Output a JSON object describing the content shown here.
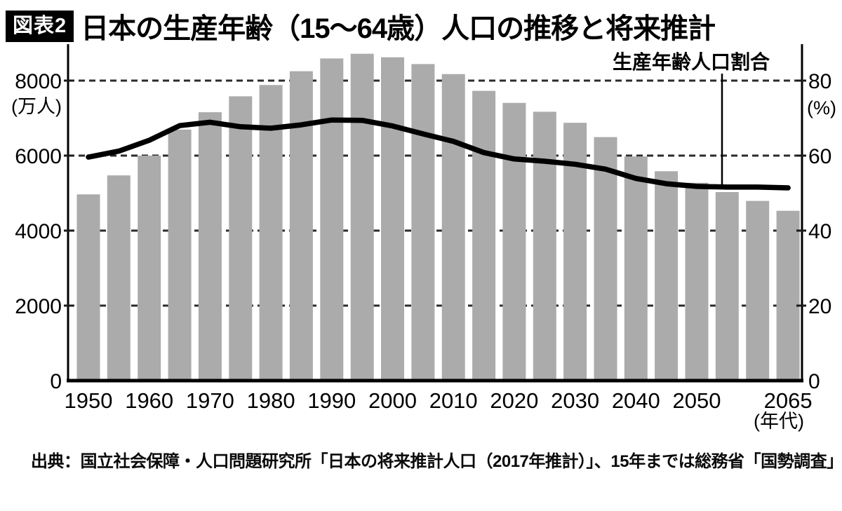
{
  "header": {
    "badge": "図表2",
    "title": "日本の生産年齢（15～64歳）人口の推移と将来推計"
  },
  "footer": {
    "source": "出典：国立社会保障・人口問題研究所「日本の将来推計人口（2017年推計）」、15年までは総務省「国勢調査」"
  },
  "chart_data": {
    "type": "bar",
    "title": "日本の生産年齢（15～64歳）人口の推移と将来推計",
    "x": [
      1950,
      1955,
      1960,
      1965,
      1970,
      1975,
      1980,
      1985,
      1990,
      1995,
      2000,
      2005,
      2010,
      2015,
      2020,
      2025,
      2030,
      2035,
      2040,
      2045,
      2050,
      2055,
      2060,
      2065
    ],
    "series": [
      {
        "name": "生産年齢人口",
        "type": "bar",
        "axis": "left",
        "unit": "万人",
        "values": [
          4966,
          5473,
          6000,
          6693,
          7157,
          7581,
          7883,
          8251,
          8590,
          8716,
          8622,
          8442,
          8173,
          7728,
          7406,
          7170,
          6875,
          6494,
          5978,
          5584,
          5275,
          5028,
          4793,
          4529
        ]
      },
      {
        "name": "生産年齢人口割合",
        "type": "line",
        "axis": "right",
        "unit": "%",
        "values": [
          59.6,
          61.2,
          64.1,
          68.0,
          68.9,
          67.7,
          67.3,
          68.2,
          69.5,
          69.4,
          67.9,
          65.8,
          63.8,
          60.8,
          59.1,
          58.5,
          57.7,
          56.4,
          53.9,
          52.5,
          51.8,
          51.6,
          51.6,
          51.4
        ]
      }
    ],
    "left_axis": {
      "unit_label": "(万人)",
      "ticks": [
        0,
        2000,
        4000,
        6000,
        8000
      ],
      "range": [
        0,
        8800
      ]
    },
    "right_axis": {
      "unit_label": "(%)",
      "ticks": [
        0,
        20,
        40,
        60,
        80
      ],
      "range": [
        0,
        88
      ]
    },
    "x_tick_years": [
      1950,
      1960,
      1970,
      1980,
      1990,
      2000,
      2010,
      2020,
      2030,
      2040,
      2050,
      2065
    ],
    "x_axis_label": "(年代)",
    "annotation": {
      "text": "生産年齢人口割合"
    },
    "colors": {
      "bar": "#ababab",
      "line": "#000000",
      "grid": "#2b2b2b"
    },
    "grid": "dashed-horizontal",
    "legend_position": "none"
  }
}
